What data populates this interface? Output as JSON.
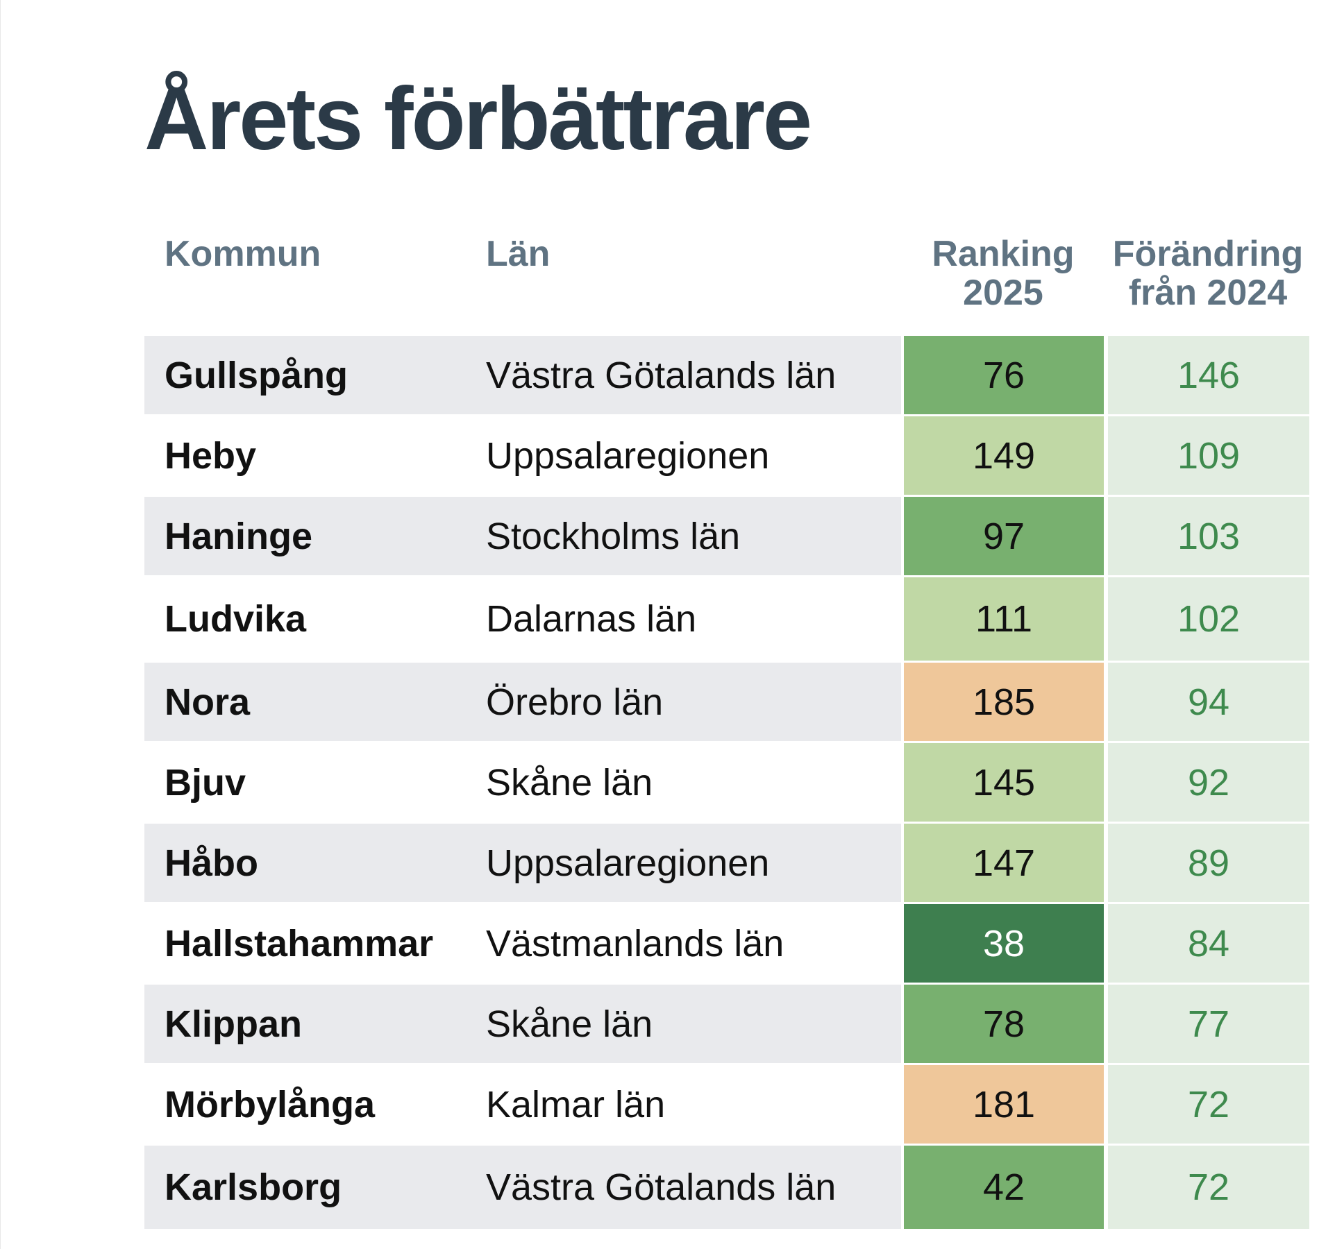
{
  "title": "Årets förbättrare",
  "headers": {
    "kommun": "Kommun",
    "lan": "Län",
    "ranking_line1": "Ranking",
    "ranking_line2": "2025",
    "change_line1": "Förändring",
    "change_line2": "från 2024"
  },
  "colors": {
    "title": "#2b3a47",
    "header": "#5f7382",
    "row_shade": "#e9eaed",
    "rank_dark_green": "#3e7f4f",
    "rank_green": "#78b06f",
    "rank_light_green": "#c0d8a5",
    "rank_orange": "#efc79a",
    "change_bg": "#e2ede1",
    "change_text": "#3e8a4d"
  },
  "chart_data": {
    "type": "table",
    "title": "Årets förbättrare",
    "columns": [
      "Kommun",
      "Län",
      "Ranking 2025",
      "Förändring från 2024"
    ],
    "rows": [
      {
        "kommun": "Gullspång",
        "lan": "Västra Götalands län",
        "ranking": "76",
        "change": "146",
        "rank_color": "#78b06f",
        "rank_text_color": "#111111"
      },
      {
        "kommun": "Heby",
        "lan": "Uppsalaregionen",
        "ranking": "149",
        "change": "109",
        "rank_color": "#c0d8a5",
        "rank_text_color": "#111111"
      },
      {
        "kommun": "Haninge",
        "lan": "Stockholms län",
        "ranking": "97",
        "change": "103",
        "rank_color": "#78b06f",
        "rank_text_color": "#111111"
      },
      {
        "kommun": "Ludvika",
        "lan": "Dalarnas län",
        "ranking": "111",
        "change": "102",
        "rank_color": "#c0d8a5",
        "rank_text_color": "#111111"
      },
      {
        "kommun": "Nora",
        "lan": "Örebro län",
        "ranking": "185",
        "change": "94",
        "rank_color": "#efc79a",
        "rank_text_color": "#111111"
      },
      {
        "kommun": "Bjuv",
        "lan": "Skåne län",
        "ranking": "145",
        "change": "92",
        "rank_color": "#c0d8a5",
        "rank_text_color": "#111111"
      },
      {
        "kommun": "Håbo",
        "lan": "Uppsalaregionen",
        "ranking": "147",
        "change": "89",
        "rank_color": "#c0d8a5",
        "rank_text_color": "#111111"
      },
      {
        "kommun": "Hallstahammar",
        "lan": "Västmanlands län",
        "ranking": "38",
        "change": "84",
        "rank_color": "#3e7f4f",
        "rank_text_color": "#ffffff"
      },
      {
        "kommun": "Klippan",
        "lan": "Skåne län",
        "ranking": "78",
        "change": "77",
        "rank_color": "#78b06f",
        "rank_text_color": "#111111"
      },
      {
        "kommun": "Mörbylånga",
        "lan": "Kalmar län",
        "ranking": "181",
        "change": "72",
        "rank_color": "#efc79a",
        "rank_text_color": "#111111"
      },
      {
        "kommun": "Karlsborg",
        "lan": "Västra Götalands län",
        "ranking": "42",
        "change": "72",
        "rank_color": "#78b06f",
        "rank_text_color": "#111111"
      }
    ]
  }
}
